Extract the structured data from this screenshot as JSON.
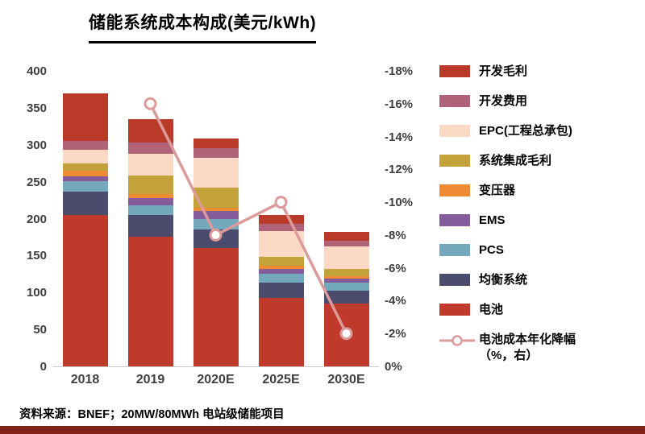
{
  "footer": {
    "source": "资料来源：BNEF；20MW/80MWh 电站级储能项目"
  },
  "colors": {
    "bottom_bar": "#832318",
    "tick_text": "#3f3f3f"
  },
  "chart_data": {
    "type": "bar",
    "stacked": true,
    "title": "储能系统成本构成(美元/kWh)",
    "categories": [
      "2018",
      "2019",
      "2020E",
      "2025E",
      "2030E"
    ],
    "series": [
      {
        "name": "电池",
        "color": "#c03a2b",
        "values": [
          205,
          175,
          160,
          93,
          85
        ]
      },
      {
        "name": "均衡系统",
        "color": "#4b4b6d",
        "values": [
          32,
          30,
          25,
          20,
          18
        ]
      },
      {
        "name": "PCS",
        "color": "#74a9bd",
        "values": [
          14,
          13,
          15,
          12,
          10
        ]
      },
      {
        "name": "EMS",
        "color": "#855c9b",
        "values": [
          6,
          10,
          10,
          7,
          6
        ]
      },
      {
        "name": "变压器",
        "color": "#ee8b33",
        "values": [
          8,
          5,
          5,
          4,
          3
        ]
      },
      {
        "name": "系统集成毛利",
        "color": "#c3a339",
        "values": [
          10,
          25,
          27,
          12,
          10
        ]
      },
      {
        "name": "EPC(工程总承包)",
        "color": "#fbd9c5",
        "values": [
          18,
          30,
          40,
          35,
          30
        ]
      },
      {
        "name": "开发费用",
        "color": "#b06378",
        "values": [
          12,
          15,
          13,
          10,
          8
        ]
      },
      {
        "name": "开发毛利",
        "color": "#b93a28",
        "values": [
          65,
          32,
          13,
          12,
          12
        ]
      }
    ],
    "line_series": {
      "name": "电池成本年化降幅（%，右）",
      "color": "#dc9a9b",
      "axis": "right",
      "values": [
        null,
        -16,
        -8,
        -10,
        -2
      ]
    },
    "left_axis": {
      "min": 0,
      "max": 400,
      "step": 50,
      "ticks": [
        "400",
        "350",
        "300",
        "250",
        "200",
        "150",
        "100",
        "50",
        "0"
      ]
    },
    "right_axis": {
      "min": 0,
      "max": -18,
      "step": -2,
      "inverted": true,
      "ticks": [
        "-18%",
        "-16%",
        "-14%",
        "-12%",
        "-10%",
        "-8%",
        "-6%",
        "-4%",
        "-2%",
        "0%"
      ]
    },
    "legend": [
      {
        "type": "rect",
        "label": "开发毛利",
        "color": "#b93a28"
      },
      {
        "type": "rect",
        "label": "开发费用",
        "color": "#b06378"
      },
      {
        "type": "rect",
        "label": "EPC(工程总承包)",
        "color": "#fbd9c5"
      },
      {
        "type": "rect",
        "label": "系统集成毛利",
        "color": "#c3a339"
      },
      {
        "type": "rect",
        "label": "变压器",
        "color": "#ee8b33"
      },
      {
        "type": "rect",
        "label": "EMS",
        "color": "#855c9b"
      },
      {
        "type": "rect",
        "label": "PCS",
        "color": "#74a9bd"
      },
      {
        "type": "rect",
        "label": "均衡系统",
        "color": "#4b4b6d"
      },
      {
        "type": "rect",
        "label": "电池",
        "color": "#c03a2b"
      },
      {
        "type": "line",
        "label": "电池成本年化降幅",
        "label2": "（%，右）",
        "color": "#dc9a9b"
      }
    ],
    "legend_position": "right",
    "grid": false
  }
}
